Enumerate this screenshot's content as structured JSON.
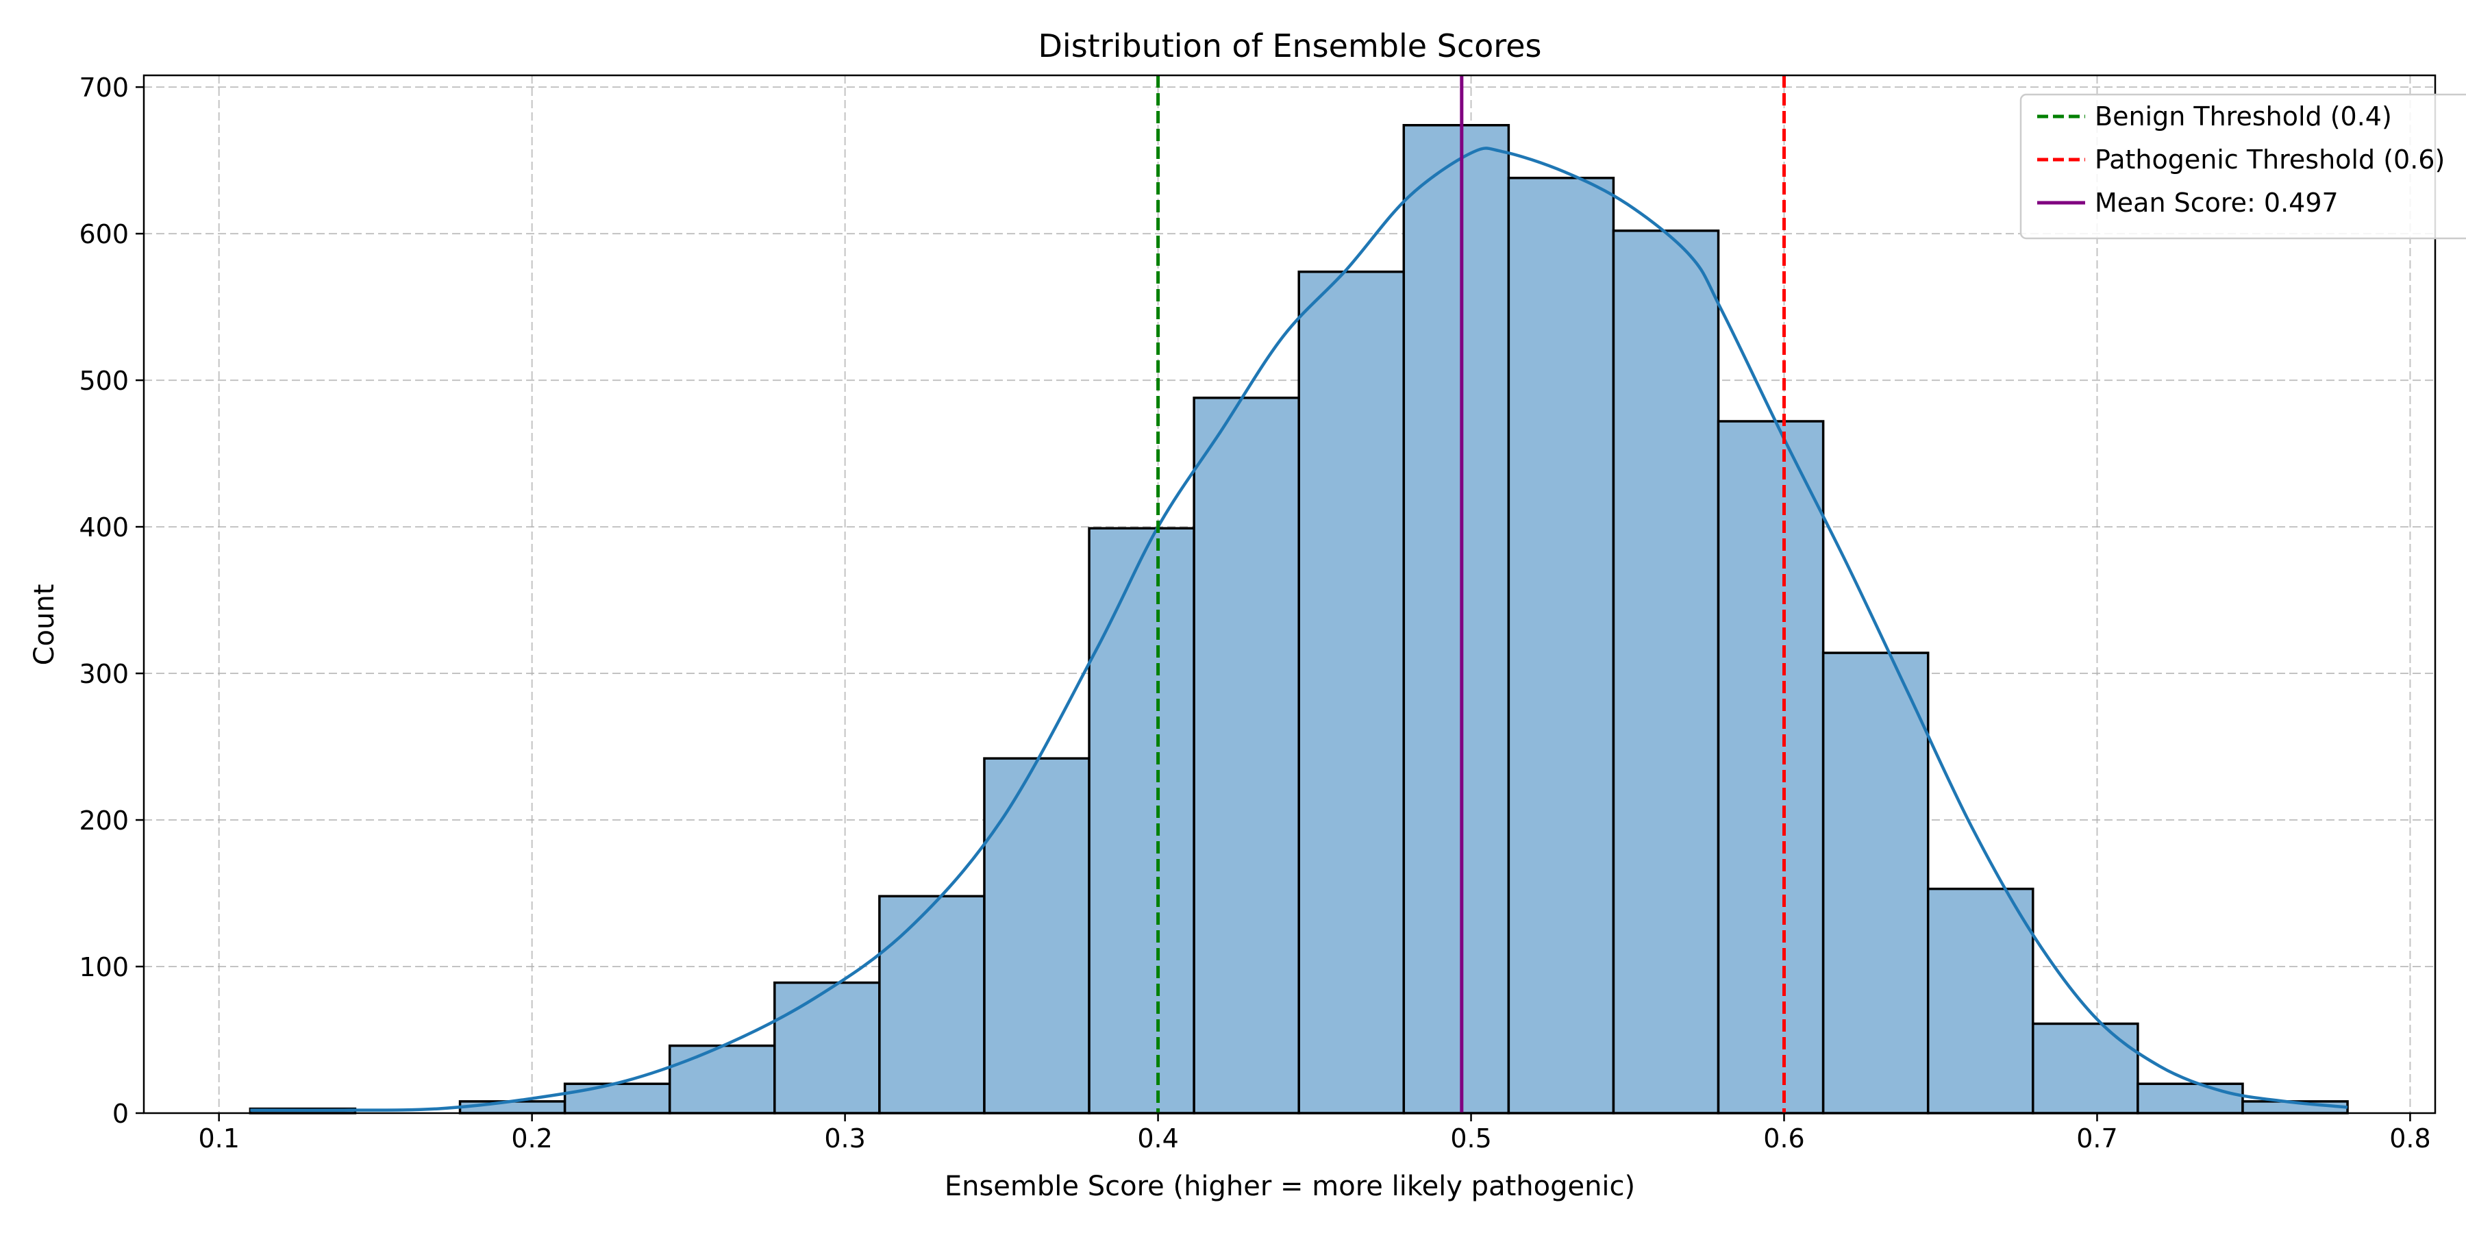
{
  "chart_data": {
    "type": "bar",
    "title": "Distribution of Ensemble Scores",
    "xlabel": "Ensemble Score (higher = more likely pathogenic)",
    "ylabel": "Count",
    "xlim": [
      0.076,
      0.808
    ],
    "ylim": [
      0,
      708
    ],
    "xticks": [
      0.1,
      0.2,
      0.3,
      0.4,
      0.5,
      0.6,
      0.7,
      0.8
    ],
    "xtick_labels": [
      "0.1",
      "0.2",
      "0.3",
      "0.4",
      "0.5",
      "0.6",
      "0.7",
      "0.8"
    ],
    "yticks": [
      0,
      100,
      200,
      300,
      400,
      500,
      600,
      700
    ],
    "ytick_labels": [
      "0",
      "100",
      "200",
      "300",
      "400",
      "500",
      "600",
      "700"
    ],
    "grid": true,
    "legend_position": "top-right",
    "bins": [
      {
        "x0": 0.11,
        "x1": 0.1435,
        "count": 3
      },
      {
        "x0": 0.1435,
        "x1": 0.177,
        "count": 0
      },
      {
        "x0": 0.177,
        "x1": 0.2105,
        "count": 8
      },
      {
        "x0": 0.2105,
        "x1": 0.244,
        "count": 20
      },
      {
        "x0": 0.244,
        "x1": 0.2775,
        "count": 46
      },
      {
        "x0": 0.2775,
        "x1": 0.311,
        "count": 89
      },
      {
        "x0": 0.311,
        "x1": 0.3445,
        "count": 148
      },
      {
        "x0": 0.3445,
        "x1": 0.378,
        "count": 242
      },
      {
        "x0": 0.378,
        "x1": 0.4115,
        "count": 399
      },
      {
        "x0": 0.4115,
        "x1": 0.445,
        "count": 488
      },
      {
        "x0": 0.445,
        "x1": 0.4785,
        "count": 574
      },
      {
        "x0": 0.4785,
        "x1": 0.512,
        "count": 674
      },
      {
        "x0": 0.512,
        "x1": 0.5455,
        "count": 638
      },
      {
        "x0": 0.5455,
        "x1": 0.579,
        "count": 602
      },
      {
        "x0": 0.579,
        "x1": 0.6125,
        "count": 472
      },
      {
        "x0": 0.6125,
        "x1": 0.646,
        "count": 314
      },
      {
        "x0": 0.646,
        "x1": 0.6795,
        "count": 153
      },
      {
        "x0": 0.6795,
        "x1": 0.713,
        "count": 61
      },
      {
        "x0": 0.713,
        "x1": 0.7465,
        "count": 20
      },
      {
        "x0": 0.7465,
        "x1": 0.78,
        "count": 8
      }
    ],
    "kde": {
      "x": [
        0.11,
        0.14,
        0.17,
        0.2,
        0.23,
        0.26,
        0.29,
        0.32,
        0.35,
        0.38,
        0.4,
        0.42,
        0.44,
        0.46,
        0.48,
        0.5,
        0.51,
        0.53,
        0.55,
        0.57,
        0.58,
        0.6,
        0.62,
        0.64,
        0.66,
        0.68,
        0.7,
        0.72,
        0.74,
        0.76,
        0.78
      ],
      "y": [
        2,
        2,
        3,
        10,
        22,
        45,
        78,
        125,
        200,
        315,
        400,
        465,
        530,
        575,
        625,
        655,
        656,
        642,
        620,
        585,
        548,
        460,
        375,
        285,
        195,
        120,
        64,
        32,
        15,
        8,
        4
      ]
    },
    "vlines": [
      {
        "name": "Benign Threshold (0.4)",
        "x": 0.4,
        "color": "#008000",
        "style": "dashed"
      },
      {
        "name": "Pathogenic Threshold (0.6)",
        "x": 0.6,
        "color": "#ff0000",
        "style": "dashed"
      },
      {
        "name": "Mean Score: 0.497",
        "x": 0.497,
        "color": "#800080",
        "style": "solid"
      }
    ],
    "colors": {
      "bar_fill": "#8fb9da",
      "bar_edge": "#000000",
      "kde_line": "#1f77b4",
      "grid": "#b0b0b0"
    }
  }
}
